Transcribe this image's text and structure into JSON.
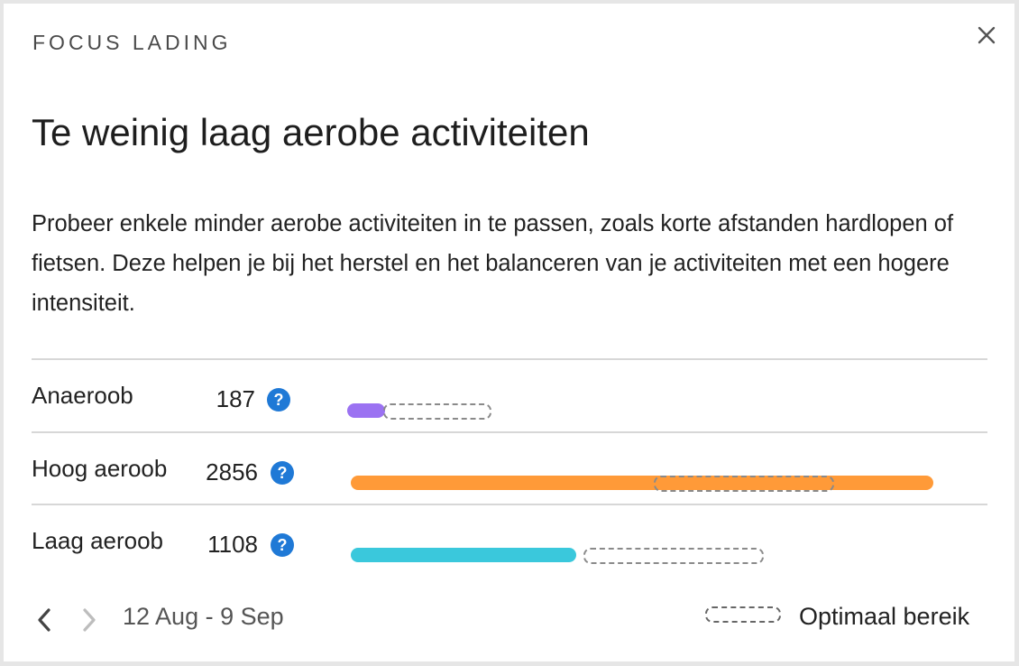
{
  "header": {
    "eyebrow": "FOCUS LADING",
    "title": "Te weinig laag aerobe activiteiten",
    "close_icon": "close-icon"
  },
  "description": "Probeer enkele minder aerobe activiteiten in te passen, zoals korte afstanden hardlopen of fietsen. Deze helpen je bij het herstel en het balanceren van je activiteiten met een hogere intensiteit.",
  "metrics": [
    {
      "label": "Anaeroob",
      "value": "187",
      "help": "?",
      "color": "#9b72f2"
    },
    {
      "label": "Hoog aeroob",
      "value": "2856",
      "help": "?",
      "color": "#ff9a38"
    },
    {
      "label": "Laag aeroob",
      "value": "1108",
      "help": "?",
      "color": "#3ac8dc"
    }
  ],
  "footer": {
    "prev_icon": "chevron-left-icon",
    "next_icon": "chevron-right-icon",
    "date_range": "12 Aug - 9 Sep",
    "legend_label": "Optimaal bereik"
  },
  "colors": {
    "help_badge": "#1f79d6",
    "divider": "#d7d7d7"
  }
}
